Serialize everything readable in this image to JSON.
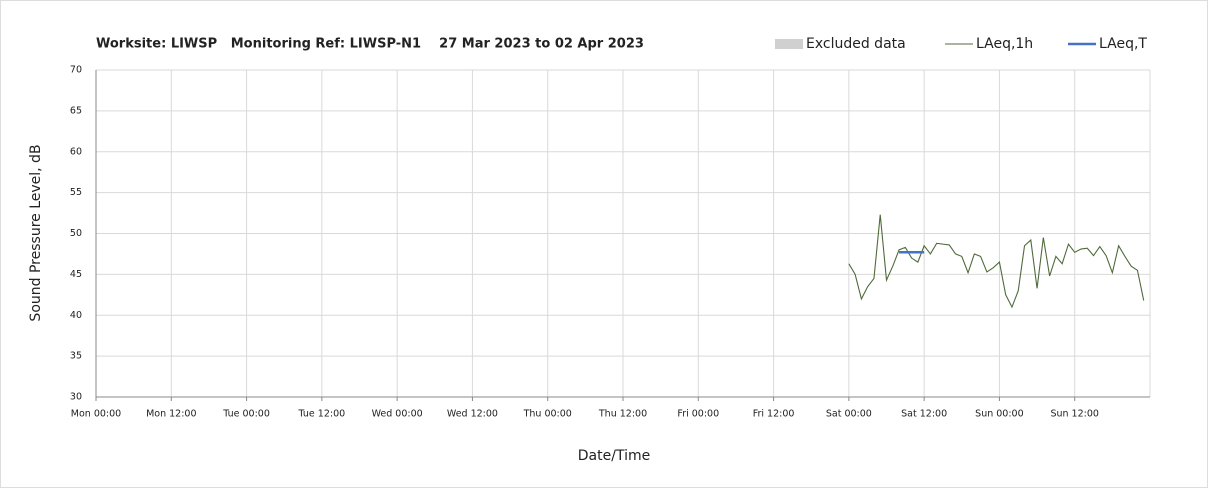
{
  "chart_data": {
    "type": "line",
    "title": "Worksite: LIWSP   Monitoring Ref: LIWSP-N1    27 Mar 2023 to 02 Apr 2023",
    "x_label": "Date/Time",
    "y_label": "Sound Pressure Level, dB",
    "xlim": [
      0,
      168
    ],
    "xticks": [
      {
        "value": 0,
        "label": "Mon 00:00"
      },
      {
        "value": 12,
        "label": "Mon 12:00"
      },
      {
        "value": 24,
        "label": "Tue 00:00"
      },
      {
        "value": 36,
        "label": "Tue 12:00"
      },
      {
        "value": 48,
        "label": "Wed 00:00"
      },
      {
        "value": 60,
        "label": "Wed 12:00"
      },
      {
        "value": 72,
        "label": "Thu 00:00"
      },
      {
        "value": 84,
        "label": "Thu 12:00"
      },
      {
        "value": 96,
        "label": "Fri 00:00"
      },
      {
        "value": 108,
        "label": "Fri 12:00"
      },
      {
        "value": 120,
        "label": "Sat 00:00"
      },
      {
        "value": 132,
        "label": "Sat 12:00"
      },
      {
        "value": 144,
        "label": "Sun 00:00"
      },
      {
        "value": 156,
        "label": "Sun 12:00"
      }
    ],
    "ylim": [
      30,
      70
    ],
    "yticks": [
      30,
      35,
      40,
      45,
      50,
      55,
      60,
      65,
      70
    ],
    "grid": true,
    "legend": "top-right",
    "series": [
      {
        "name": "Excluded data",
        "color": "#d0d0d0",
        "kind": "area",
        "x": [],
        "values": []
      },
      {
        "name": "LAeq,1h",
        "color": "#4f6b3a",
        "kind": "line",
        "x": [
          120,
          121,
          122,
          123,
          124,
          125,
          126,
          127,
          128,
          129,
          130,
          131,
          132,
          133,
          134,
          135,
          136,
          137,
          138,
          139,
          140,
          141,
          142,
          143,
          144,
          145,
          146,
          147,
          148,
          149,
          150,
          151,
          152,
          153,
          154,
          155,
          156,
          157,
          158,
          159,
          160,
          161,
          162,
          163,
          164,
          165,
          166,
          167
        ],
        "values": [
          46.3,
          45,
          42,
          43.5,
          44.5,
          52.3,
          44.3,
          46,
          48,
          48.3,
          47,
          46.5,
          48.5,
          47.5,
          48.8,
          48.7,
          48.6,
          47.5,
          47.2,
          45.2,
          47.5,
          47.2,
          45.3,
          45.8,
          46.5,
          42.5,
          41,
          43,
          48.5,
          49.2,
          43.3,
          49.5,
          44.8,
          47.2,
          46.3,
          48.7,
          47.7,
          48.1,
          48.2,
          47.3,
          48.4,
          47.3,
          45.2,
          48.5,
          47.2,
          46,
          45.5,
          41.8
        ]
      },
      {
        "name": "LAeq,T",
        "color": "#4472c4",
        "kind": "thick",
        "x": [
          128,
          132
        ],
        "values": [
          47.7,
          47.7
        ]
      }
    ]
  }
}
